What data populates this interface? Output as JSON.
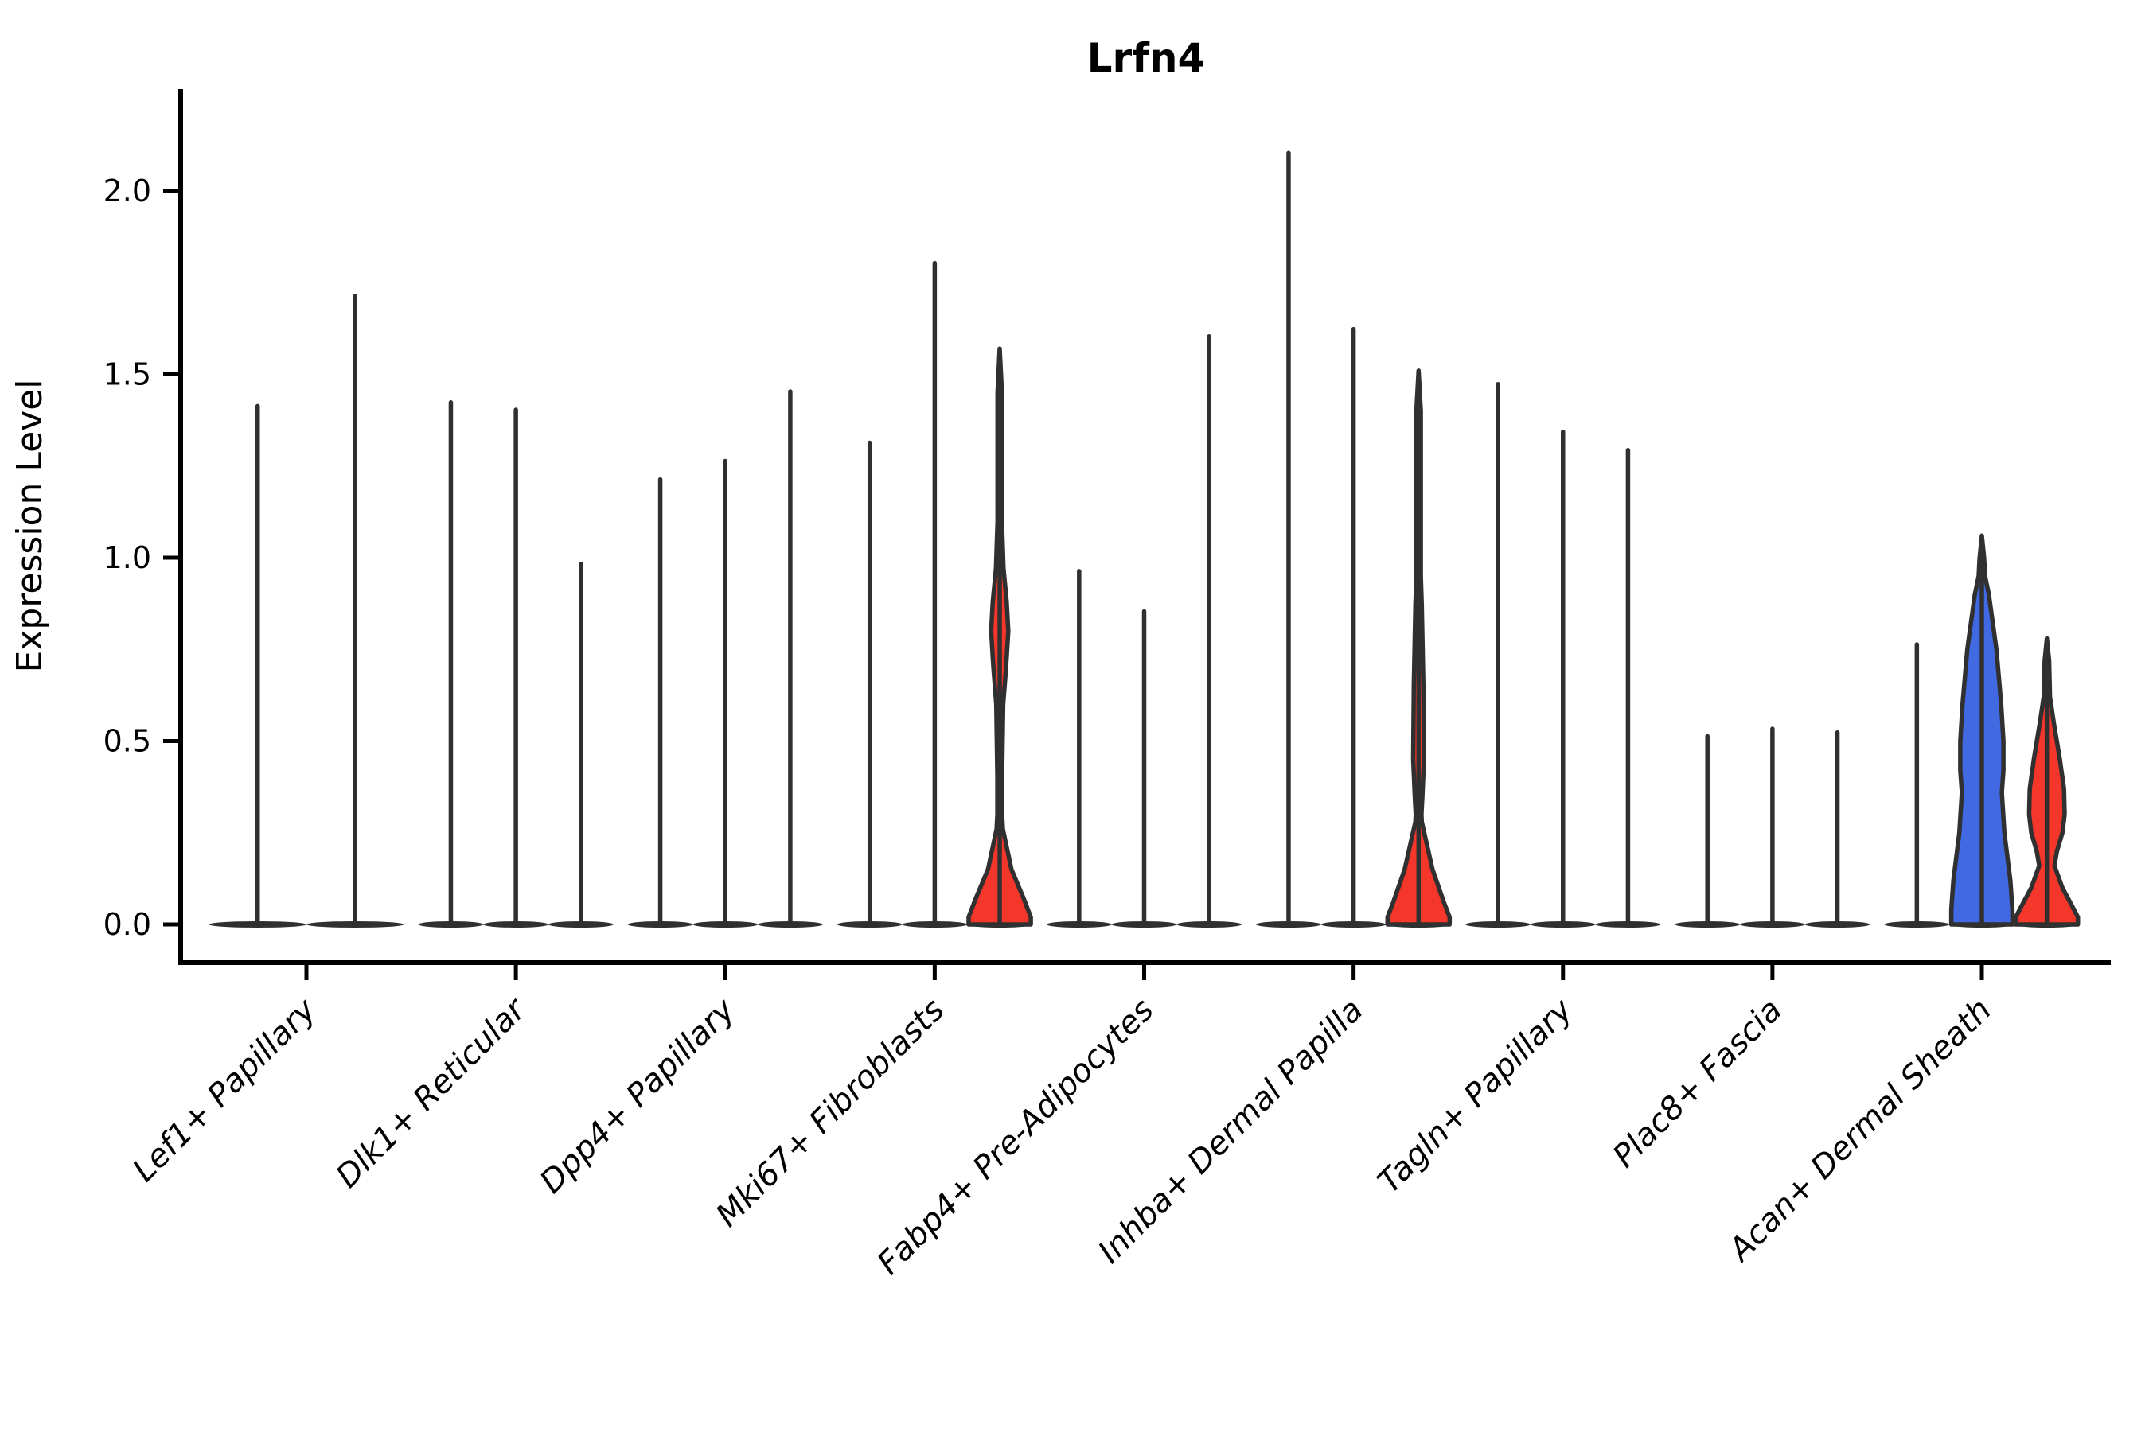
{
  "chart_data": {
    "type": "violin",
    "title": "Lrfn4",
    "ylabel": "Expression Level",
    "xlabel": "",
    "ylim": [
      -0.1,
      2.28
    ],
    "grid": false,
    "legend": null,
    "yticks": [
      "0.0",
      "0.5",
      "1.0",
      "1.5",
      "2.0"
    ],
    "ytick_values": [
      0.0,
      0.5,
      1.0,
      1.5,
      2.0
    ],
    "colors": {
      "red": "#f5362b",
      "blue": "#4169e1",
      "outline": "#303030",
      "axis": "#000000"
    },
    "categories": [
      {
        "label": "Lef1+ Papillary",
        "violins": [
          {
            "max": 1.42,
            "fill": null
          },
          {
            "max": 1.72,
            "fill": null
          }
        ]
      },
      {
        "label": "Dlk1+ Reticular",
        "violins": [
          {
            "max": 1.43,
            "fill": null
          },
          {
            "max": 1.41,
            "fill": null
          },
          {
            "max": 0.99,
            "fill": null
          }
        ]
      },
      {
        "label": "Dpp4+ Papillary",
        "violins": [
          {
            "max": 1.22,
            "fill": null
          },
          {
            "max": 1.27,
            "fill": null
          },
          {
            "max": 1.46,
            "fill": null
          }
        ]
      },
      {
        "label": "Mki67+ Fibroblasts",
        "violins": [
          {
            "max": 1.32,
            "fill": null
          },
          {
            "max": 1.81,
            "fill": null
          },
          {
            "max": 1.57,
            "fill": "red",
            "profile": [
              [
                1.57,
                0
              ],
              [
                1.45,
                0.07
              ],
              [
                1.1,
                0.07
              ],
              [
                0.97,
                0.12
              ],
              [
                0.88,
                0.22
              ],
              [
                0.8,
                0.27
              ],
              [
                0.7,
                0.2
              ],
              [
                0.6,
                0.11
              ],
              [
                0.4,
                0.075
              ],
              [
                0.3,
                0.075
              ],
              [
                0.26,
                0.1
              ],
              [
                0.15,
                0.37
              ],
              [
                0.07,
                0.76
              ],
              [
                0.02,
                0.98
              ],
              [
                0,
                0.98
              ]
            ]
          }
        ]
      },
      {
        "label": "Fabp4+ Pre-Adipocytes",
        "violins": [
          {
            "max": 0.97,
            "fill": null
          },
          {
            "max": 0.86,
            "fill": null
          },
          {
            "max": 1.61,
            "fill": null
          }
        ]
      },
      {
        "label": "Inhba+ Dermal Papilla",
        "violins": [
          {
            "max": 2.11,
            "fill": null
          },
          {
            "max": 1.63,
            "fill": null
          },
          {
            "max": 1.51,
            "fill": "red",
            "profile": [
              [
                1.51,
                0
              ],
              [
                1.4,
                0.07
              ],
              [
                0.95,
                0.07
              ],
              [
                0.87,
                0.1
              ],
              [
                0.65,
                0.15
              ],
              [
                0.45,
                0.17
              ],
              [
                0.35,
                0.12
              ],
              [
                0.3,
                0.09
              ],
              [
                0.28,
                0.1
              ],
              [
                0.15,
                0.44
              ],
              [
                0.06,
                0.8
              ],
              [
                0.02,
                0.98
              ],
              [
                0,
                0.98
              ]
            ]
          }
        ]
      },
      {
        "label": "Tagln+ Papillary",
        "violins": [
          {
            "max": 1.48,
            "fill": null
          },
          {
            "max": 1.35,
            "fill": null
          },
          {
            "max": 1.3,
            "fill": null
          }
        ]
      },
      {
        "label": "Plac8+ Fascia",
        "violins": [
          {
            "max": 0.52,
            "fill": null
          },
          {
            "max": 0.54,
            "fill": null
          },
          {
            "max": 0.53,
            "fill": null
          }
        ]
      },
      {
        "label": "Acan+ Dermal Sheath",
        "violins": [
          {
            "max": 0.77,
            "fill": null
          },
          {
            "max": 1.06,
            "fill": "blue",
            "profile": [
              [
                1.06,
                0
              ],
              [
                1.0,
                0.07
              ],
              [
                0.95,
                0.1
              ],
              [
                0.9,
                0.22
              ],
              [
                0.75,
                0.46
              ],
              [
                0.6,
                0.61
              ],
              [
                0.5,
                0.68
              ],
              [
                0.42,
                0.68
              ],
              [
                0.36,
                0.63
              ],
              [
                0.25,
                0.71
              ],
              [
                0.12,
                0.9
              ],
              [
                0.04,
                0.965
              ],
              [
                0,
                0.965
              ]
            ]
          },
          {
            "max": 0.78,
            "fill": "red",
            "profile": [
              [
                0.78,
                0
              ],
              [
                0.72,
                0.07
              ],
              [
                0.62,
                0.1
              ],
              [
                0.55,
                0.22
              ],
              [
                0.45,
                0.41
              ],
              [
                0.37,
                0.54
              ],
              [
                0.3,
                0.56
              ],
              [
                0.25,
                0.49
              ],
              [
                0.2,
                0.32
              ],
              [
                0.16,
                0.24
              ],
              [
                0.1,
                0.49
              ],
              [
                0.05,
                0.8
              ],
              [
                0.02,
                0.98
              ],
              [
                0,
                0.98
              ]
            ]
          }
        ]
      }
    ]
  }
}
